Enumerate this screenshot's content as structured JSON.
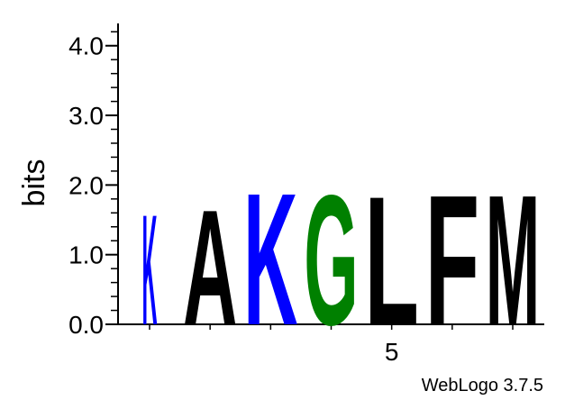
{
  "chart_data": {
    "type": "sequence-logo",
    "ylabel": "bits",
    "ylim": [
      0,
      4.32
    ],
    "yticks": [
      "0.0",
      "1.0",
      "2.0",
      "3.0",
      "4.0"
    ],
    "x_tick_label": "5",
    "x_tick_position": 5,
    "positions": [
      {
        "position": 1,
        "letter": "K",
        "bits": 1.63,
        "color": "#0000ff"
      },
      {
        "position": 2,
        "letter": "A",
        "bits": 1.7,
        "color": "#000000"
      },
      {
        "position": 3,
        "letter": "K",
        "bits": 1.95,
        "color": "#0000ff"
      },
      {
        "position": 4,
        "letter": "G",
        "bits": 1.92,
        "color": "#008000"
      },
      {
        "position": 5,
        "letter": "L",
        "bits": 1.9,
        "color": "#000000"
      },
      {
        "position": 6,
        "letter": "F",
        "bits": 1.92,
        "color": "#000000"
      },
      {
        "position": 7,
        "letter": "M",
        "bits": 1.92,
        "color": "#000000"
      }
    ]
  },
  "credit": "WebLogo 3.7.5"
}
